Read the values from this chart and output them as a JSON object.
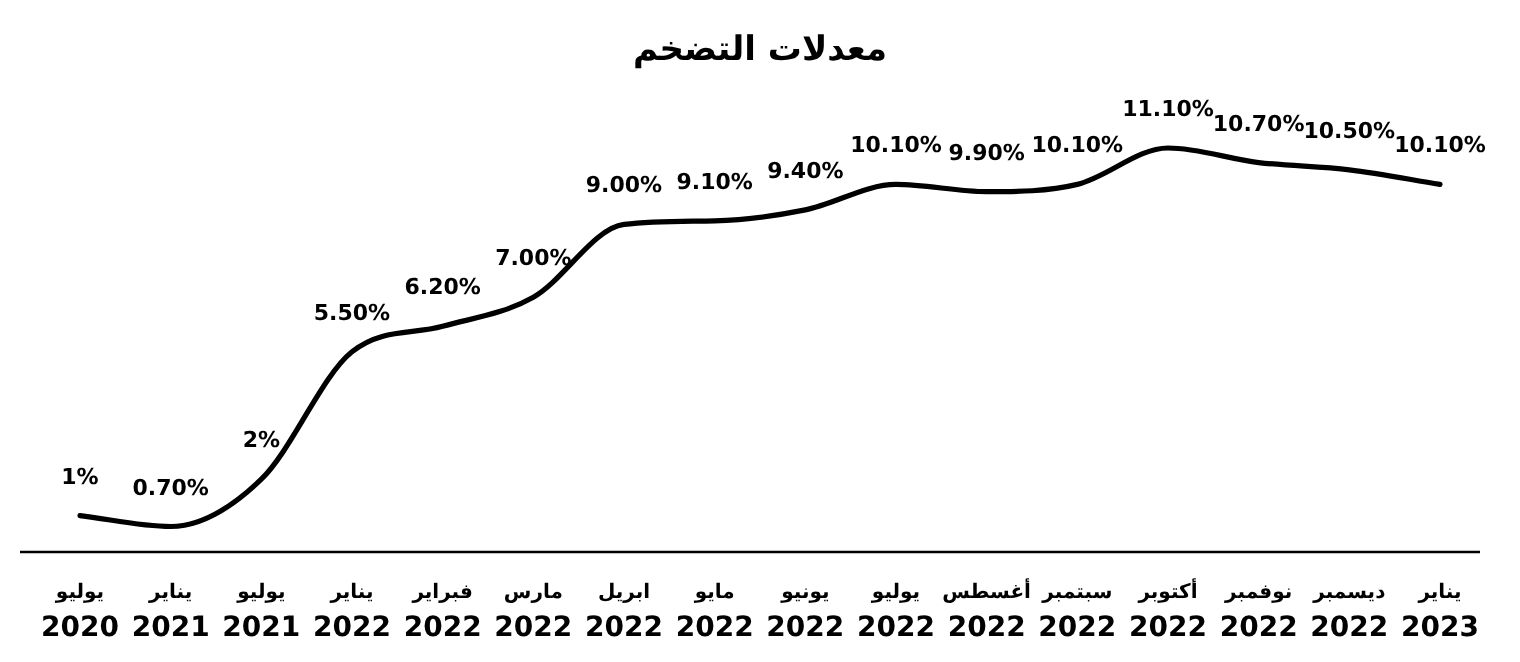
{
  "chart_data": {
    "type": "line",
    "title": "معدلات التضخم",
    "categories": [
      "يوليو 2020",
      "يناير 2021",
      "يوليو 2021",
      "يناير 2022",
      "فبراير 2022",
      "مارس 2022",
      "ابريل 2022",
      "مايو 2022",
      "يونيو 2022",
      "يوليو 2022",
      "أغسطس 2022",
      "سبتمبر 2022",
      "أكتوبر 2022",
      "نوفمبر 2022",
      "ديسمبر 2022",
      "يناير 2023"
    ],
    "series": [
      {
        "color": "#000000",
        "values": [
          1,
          0.7,
          2,
          5.5,
          6.2,
          7,
          9,
          9.1,
          9.4,
          10.1,
          9.9,
          10.1,
          11.1,
          10.7,
          10.5,
          10.1
        ],
        "value_labels": [
          "1%",
          "0.70%",
          "2%",
          "5.50%",
          "6.20%",
          "7.00%",
          "9.00%",
          "9.10%",
          "9.40%",
          "10.10%",
          "9.90%",
          "10.10%",
          "11.10%",
          "10.70%",
          "10.50%",
          "10.10%"
        ]
      }
    ],
    "marker": "none"
  }
}
